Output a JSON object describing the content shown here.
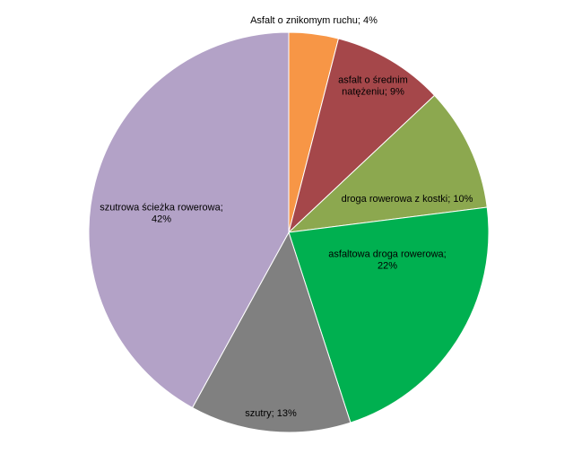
{
  "chart_data": {
    "type": "pie",
    "title": "",
    "legend": "none",
    "slices": [
      {
        "label": "Asfalt o znikomym ruchu",
        "value": 4,
        "display": "4%",
        "color": "#F79646"
      },
      {
        "label": "asfalt o średnim natężeniu",
        "value": 9,
        "display": "9%",
        "color": "#A5474A"
      },
      {
        "label": "droga rowerowa z kostki",
        "value": 10,
        "display": "10%",
        "color": "#8CA84F"
      },
      {
        "label": "asfaltowa droga rowerowa",
        "value": 22,
        "display": "22%",
        "color": "#00B050"
      },
      {
        "label": "szutry",
        "value": 13,
        "display": "13%",
        "color": "#808080"
      },
      {
        "label": "szutrowa ścieżka rowerowa",
        "value": 42,
        "display": "42%",
        "color": "#B3A2C7"
      }
    ],
    "data_labels": [
      [
        "Asfalt o znikomym ruchu; 4%"
      ],
      [
        "asfalt o średnim",
        "natężeniu; 9%"
      ],
      [
        "droga rowerowa z kostki; 10%"
      ],
      [
        "asfaltowa droga rowerowa;",
        "22%"
      ],
      [
        "szutry; 13%"
      ],
      [
        "szutrowa ścieżka rowerowa;",
        "42%"
      ]
    ]
  }
}
